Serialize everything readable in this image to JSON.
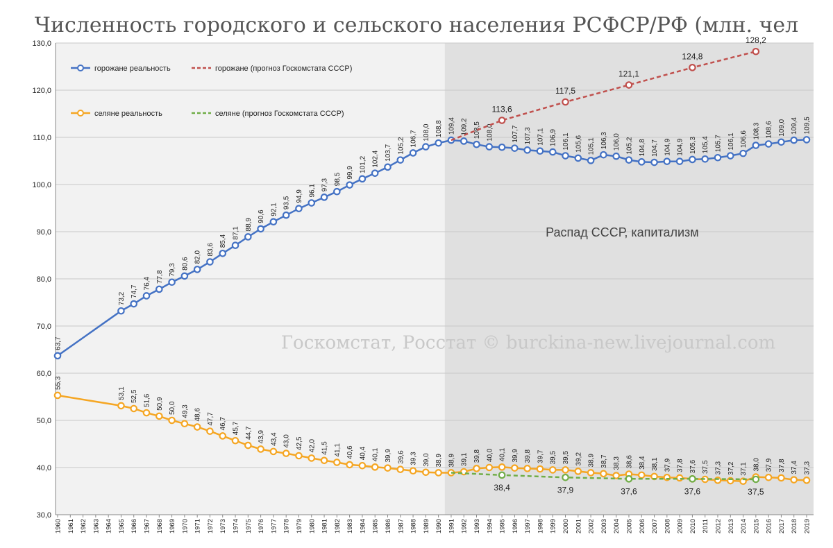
{
  "chart_data": {
    "type": "line",
    "title": "Численность городского и сельского населения РСФСР/РФ (млн. чел",
    "ylim": [
      30,
      130
    ],
    "y_ticks": [
      "30,0",
      "40,0",
      "50,0",
      "60,0",
      "70,0",
      "80,0",
      "90,0",
      "100,0",
      "110,0",
      "120,0",
      "130,0"
    ],
    "categories": [
      1960,
      1961,
      1962,
      1963,
      1964,
      1965,
      1966,
      1967,
      1968,
      1969,
      1970,
      1971,
      1972,
      1973,
      1974,
      1975,
      1976,
      1977,
      1978,
      1979,
      1980,
      1981,
      1982,
      1983,
      1984,
      1985,
      1986,
      1987,
      1988,
      1989,
      1990,
      1991,
      1992,
      1993,
      1994,
      1995,
      1996,
      1997,
      1998,
      1999,
      2000,
      2001,
      2002,
      2003,
      2004,
      2005,
      2006,
      2007,
      2008,
      2009,
      2010,
      2011,
      2012,
      2013,
      2014,
      2015,
      2016,
      2017,
      2018,
      2019
    ],
    "grid": true,
    "legend_position": "top-left",
    "region": {
      "from": 1991,
      "to": 2019,
      "label": "Распад СССР, капитализм"
    },
    "watermark": "Госкомстат, Росстат © burckina-new.livejournal.com",
    "series": [
      {
        "name": "горожане реальность",
        "color": "#4472c4",
        "style": "solid",
        "label_orientation": "vertical",
        "points": [
          {
            "x": 1960,
            "y": 63.7,
            "label": "63,7"
          },
          {
            "x": 1965,
            "y": 73.2,
            "label": "73,2"
          },
          {
            "x": 1966,
            "y": 74.7,
            "label": "74,7"
          },
          {
            "x": 1967,
            "y": 76.4,
            "label": "76,4"
          },
          {
            "x": 1968,
            "y": 77.8,
            "label": "77,8"
          },
          {
            "x": 1969,
            "y": 79.3,
            "label": "79,3"
          },
          {
            "x": 1970,
            "y": 80.6,
            "label": "80,6"
          },
          {
            "x": 1971,
            "y": 82.0,
            "label": "82,0"
          },
          {
            "x": 1972,
            "y": 83.6,
            "label": "83,6"
          },
          {
            "x": 1973,
            "y": 85.4,
            "label": "85,4"
          },
          {
            "x": 1974,
            "y": 87.1,
            "label": "87,1"
          },
          {
            "x": 1975,
            "y": 88.9,
            "label": "88,9"
          },
          {
            "x": 1976,
            "y": 90.6,
            "label": "90,6"
          },
          {
            "x": 1977,
            "y": 92.1,
            "label": "92,1"
          },
          {
            "x": 1978,
            "y": 93.5,
            "label": "93,5"
          },
          {
            "x": 1979,
            "y": 94.9,
            "label": "94,9"
          },
          {
            "x": 1980,
            "y": 96.1,
            "label": "96,1"
          },
          {
            "x": 1981,
            "y": 97.3,
            "label": "97,3"
          },
          {
            "x": 1982,
            "y": 98.5,
            "label": "98,5"
          },
          {
            "x": 1983,
            "y": 99.9,
            "label": "99,9"
          },
          {
            "x": 1984,
            "y": 101.2,
            "label": "101,2"
          },
          {
            "x": 1985,
            "y": 102.4,
            "label": "102,4"
          },
          {
            "x": 1986,
            "y": 103.7,
            "label": "103,7"
          },
          {
            "x": 1987,
            "y": 105.2,
            "label": "105,2"
          },
          {
            "x": 1988,
            "y": 106.7,
            "label": "106,7"
          },
          {
            "x": 1989,
            "y": 108.0,
            "label": "108,0"
          },
          {
            "x": 1990,
            "y": 108.8,
            "label": "108,8"
          },
          {
            "x": 1991,
            "y": 109.4,
            "label": "109,4"
          },
          {
            "x": 1992,
            "y": 109.2,
            "label": "109,2"
          },
          {
            "x": 1993,
            "y": 108.5,
            "label": "108,5"
          },
          {
            "x": 1994,
            "y": 108.0,
            "label": "108,0"
          },
          {
            "x": 1995,
            "y": 107.9,
            "label": ""
          },
          {
            "x": 1996,
            "y": 107.7,
            "label": "107,7"
          },
          {
            "x": 1997,
            "y": 107.3,
            "label": "107,3"
          },
          {
            "x": 1998,
            "y": 107.1,
            "label": "107,1"
          },
          {
            "x": 1999,
            "y": 106.9,
            "label": "106,9"
          },
          {
            "x": 2000,
            "y": 106.1,
            "label": "106,1"
          },
          {
            "x": 2001,
            "y": 105.6,
            "label": "105,6"
          },
          {
            "x": 2002,
            "y": 105.1,
            "label": "105,1"
          },
          {
            "x": 2003,
            "y": 106.3,
            "label": "106,3"
          },
          {
            "x": 2004,
            "y": 106.0,
            "label": "106,0"
          },
          {
            "x": 2005,
            "y": 105.2,
            "label": "105,2"
          },
          {
            "x": 2006,
            "y": 104.8,
            "label": "104,8"
          },
          {
            "x": 2007,
            "y": 104.7,
            "label": "104,7"
          },
          {
            "x": 2008,
            "y": 104.9,
            "label": "104,9"
          },
          {
            "x": 2009,
            "y": 104.9,
            "label": "104,9"
          },
          {
            "x": 2010,
            "y": 105.3,
            "label": "105,3"
          },
          {
            "x": 2011,
            "y": 105.4,
            "label": "105,4"
          },
          {
            "x": 2012,
            "y": 105.7,
            "label": "105,7"
          },
          {
            "x": 2013,
            "y": 106.1,
            "label": "106,1"
          },
          {
            "x": 2014,
            "y": 106.6,
            "label": "106,6"
          },
          {
            "x": 2015,
            "y": 108.3,
            "label": "108,3"
          },
          {
            "x": 2016,
            "y": 108.6,
            "label": "108,6"
          },
          {
            "x": 2017,
            "y": 109.0,
            "label": "109,0"
          },
          {
            "x": 2018,
            "y": 109.4,
            "label": "109,4"
          },
          {
            "x": 2019,
            "y": 109.5,
            "label": "109,5"
          }
        ]
      },
      {
        "name": "горожане (прогноз Госкомстата СССР)",
        "color": "#c0504d",
        "style": "dashed",
        "label_orientation": "horizontal",
        "points": [
          {
            "x": 1991,
            "y": 109.4,
            "label": "",
            "marker": false
          },
          {
            "x": 1995,
            "y": 113.6,
            "label": "113,6",
            "marker": true
          },
          {
            "x": 2000,
            "y": 117.5,
            "label": "117,5",
            "marker": true
          },
          {
            "x": 2005,
            "y": 121.1,
            "label": "121,1",
            "marker": true
          },
          {
            "x": 2010,
            "y": 124.8,
            "label": "124,8",
            "marker": true
          },
          {
            "x": 2015,
            "y": 128.2,
            "label": "128,2",
            "marker": true
          }
        ]
      },
      {
        "name": "селяне  реальность",
        "color": "#f5a623",
        "style": "solid",
        "label_orientation": "vertical",
        "points": [
          {
            "x": 1960,
            "y": 55.3,
            "label": "55,3"
          },
          {
            "x": 1965,
            "y": 53.1,
            "label": "53,1"
          },
          {
            "x": 1966,
            "y": 52.5,
            "label": "52,5"
          },
          {
            "x": 1967,
            "y": 51.6,
            "label": "51,6"
          },
          {
            "x": 1968,
            "y": 50.9,
            "label": "50,9"
          },
          {
            "x": 1969,
            "y": 50.0,
            "label": "50,0"
          },
          {
            "x": 1970,
            "y": 49.3,
            "label": "49,3"
          },
          {
            "x": 1971,
            "y": 48.6,
            "label": "48,6"
          },
          {
            "x": 1972,
            "y": 47.7,
            "label": "47,7"
          },
          {
            "x": 1973,
            "y": 46.7,
            "label": "46,7"
          },
          {
            "x": 1974,
            "y": 45.7,
            "label": "45,7"
          },
          {
            "x": 1975,
            "y": 44.7,
            "label": "44,7"
          },
          {
            "x": 1976,
            "y": 43.9,
            "label": "43,9"
          },
          {
            "x": 1977,
            "y": 43.4,
            "label": "43,4"
          },
          {
            "x": 1978,
            "y": 43.0,
            "label": "43,0"
          },
          {
            "x": 1979,
            "y": 42.5,
            "label": "42,5"
          },
          {
            "x": 1980,
            "y": 42.0,
            "label": "42,0"
          },
          {
            "x": 1981,
            "y": 41.5,
            "label": "41,5"
          },
          {
            "x": 1982,
            "y": 41.1,
            "label": "41,1"
          },
          {
            "x": 1983,
            "y": 40.6,
            "label": "40,6"
          },
          {
            "x": 1984,
            "y": 40.4,
            "label": "40,4"
          },
          {
            "x": 1985,
            "y": 40.1,
            "label": "40,1"
          },
          {
            "x": 1986,
            "y": 39.9,
            "label": "39,9"
          },
          {
            "x": 1987,
            "y": 39.6,
            "label": "39,6"
          },
          {
            "x": 1988,
            "y": 39.3,
            "label": "39,3"
          },
          {
            "x": 1989,
            "y": 39.0,
            "label": "39,0"
          },
          {
            "x": 1990,
            "y": 38.9,
            "label": "38,9"
          },
          {
            "x": 1991,
            "y": 38.9,
            "label": "38,9"
          },
          {
            "x": 1992,
            "y": 39.1,
            "label": "39,1"
          },
          {
            "x": 1993,
            "y": 39.8,
            "label": "39,8"
          },
          {
            "x": 1994,
            "y": 40.0,
            "label": "40,0"
          },
          {
            "x": 1995,
            "y": 40.1,
            "label": "40,1"
          },
          {
            "x": 1996,
            "y": 39.9,
            "label": "39,9"
          },
          {
            "x": 1997,
            "y": 39.8,
            "label": "39,8"
          },
          {
            "x": 1998,
            "y": 39.7,
            "label": "39,7"
          },
          {
            "x": 1999,
            "y": 39.5,
            "label": "39,5"
          },
          {
            "x": 2000,
            "y": 39.5,
            "label": "39,5"
          },
          {
            "x": 2001,
            "y": 39.2,
            "label": "39,2"
          },
          {
            "x": 2002,
            "y": 38.9,
            "label": "38,9"
          },
          {
            "x": 2003,
            "y": 38.7,
            "label": "38,7"
          },
          {
            "x": 2004,
            "y": 38.3,
            "label": "38,3"
          },
          {
            "x": 2005,
            "y": 38.6,
            "label": "38,6"
          },
          {
            "x": 2006,
            "y": 38.4,
            "label": "38,4"
          },
          {
            "x": 2007,
            "y": 38.1,
            "label": "38,1"
          },
          {
            "x": 2008,
            "y": 37.9,
            "label": "37,9"
          },
          {
            "x": 2009,
            "y": 37.8,
            "label": "37,8"
          },
          {
            "x": 2010,
            "y": 37.6,
            "label": "37,6"
          },
          {
            "x": 2011,
            "y": 37.5,
            "label": "37,5"
          },
          {
            "x": 2012,
            "y": 37.3,
            "label": "37,3"
          },
          {
            "x": 2013,
            "y": 37.2,
            "label": "37,2"
          },
          {
            "x": 2014,
            "y": 37.1,
            "label": "37,1"
          },
          {
            "x": 2015,
            "y": 38.0,
            "label": "38,0"
          },
          {
            "x": 2016,
            "y": 37.9,
            "label": "37,9"
          },
          {
            "x": 2017,
            "y": 37.8,
            "label": "37,8"
          },
          {
            "x": 2018,
            "y": 37.4,
            "label": "37,4"
          },
          {
            "x": 2019,
            "y": 37.3,
            "label": "37,3"
          }
        ]
      },
      {
        "name": "селяне (прогноз Госкомстата СССР)",
        "color": "#70ad47",
        "style": "dashed",
        "label_orientation": "horizontal_below",
        "points": [
          {
            "x": 1991,
            "y": 38.9,
            "label": "",
            "marker": false
          },
          {
            "x": 1995,
            "y": 38.4,
            "label": "38,4",
            "marker": true
          },
          {
            "x": 2000,
            "y": 37.9,
            "label": "37,9",
            "marker": true
          },
          {
            "x": 2005,
            "y": 37.6,
            "label": "37,6",
            "marker": true
          },
          {
            "x": 2010,
            "y": 37.6,
            "label": "37,6",
            "marker": true
          },
          {
            "x": 2015,
            "y": 37.5,
            "label": "37,5",
            "marker": true
          }
        ]
      }
    ]
  }
}
